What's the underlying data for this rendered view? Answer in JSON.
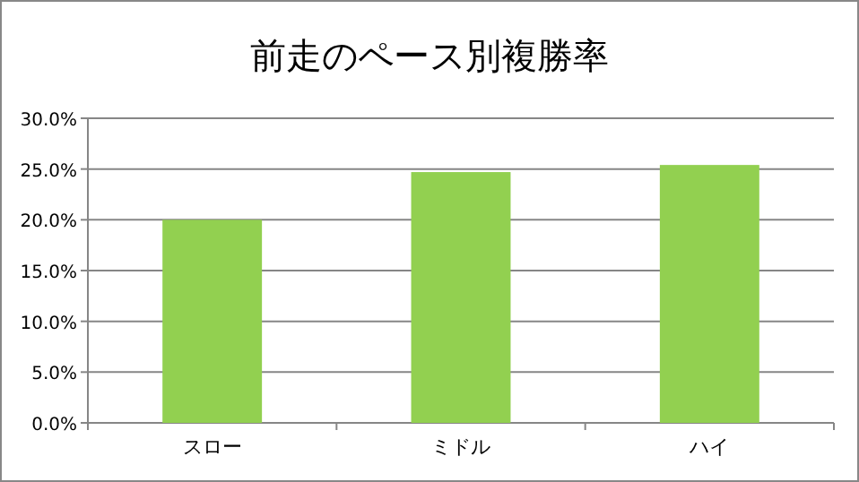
{
  "chart_data": {
    "type": "bar",
    "title": "前走のペース別複勝率",
    "categories": [
      "スロー",
      "ミドル",
      "ハイ"
    ],
    "values": [
      20.0,
      24.7,
      25.4
    ],
    "color": "#92d050",
    "ylim": [
      0,
      30
    ],
    "yticks": [
      {
        "value": 0,
        "label": "0.0%"
      },
      {
        "value": 5,
        "label": "5.0%"
      },
      {
        "value": 10,
        "label": "10.0%"
      },
      {
        "value": 15,
        "label": "15.0%"
      },
      {
        "value": 20,
        "label": "20.0%"
      },
      {
        "value": 25,
        "label": "25.0%"
      },
      {
        "value": 30,
        "label": "30.0%"
      }
    ],
    "grid": "y"
  }
}
